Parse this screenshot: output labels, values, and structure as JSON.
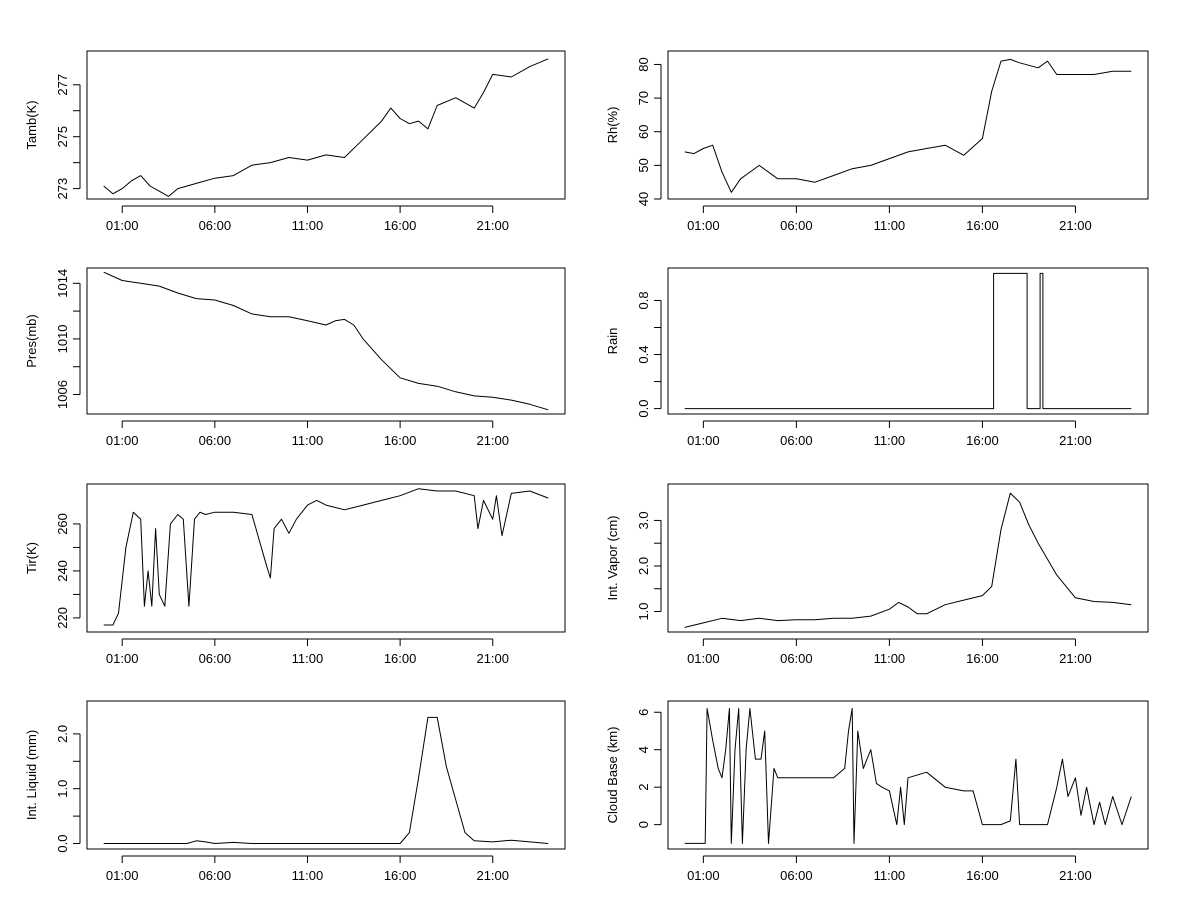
{
  "figure": {
    "title": ""
  },
  "chart_data": [
    {
      "type": "line",
      "ylabel": "Tamb(K)",
      "x_ticks": [
        "01:00",
        "06:00",
        "11:00",
        "16:00",
        "21:00"
      ],
      "x_tick_hours": [
        1,
        6,
        11,
        16,
        21
      ],
      "xlim": [
        -0.9,
        24.9
      ],
      "ylim": [
        272.6,
        278.3
      ],
      "y_ticks": [
        273,
        275,
        277
      ],
      "y_tick_labels": [
        "273",
        "275",
        "277"
      ],
      "y_minor_ticks": [
        274,
        276
      ],
      "series": [
        {
          "name": "Tamb(K)",
          "x": [
            0,
            0.5,
            1,
            1.5,
            2,
            2.5,
            3,
            3.5,
            4,
            5,
            6,
            7,
            8,
            9,
            10,
            11,
            12,
            13,
            14,
            15,
            15.5,
            16,
            16.5,
            17,
            17.5,
            18,
            19,
            20,
            20.5,
            21,
            22,
            23,
            24
          ],
          "y": [
            273.1,
            272.8,
            273.0,
            273.3,
            273.5,
            273.1,
            272.9,
            272.7,
            273.0,
            273.2,
            273.4,
            273.5,
            273.9,
            274.0,
            274.2,
            274.1,
            274.3,
            274.2,
            274.9,
            275.6,
            276.1,
            275.7,
            275.5,
            275.6,
            275.3,
            276.2,
            276.5,
            276.1,
            276.7,
            277.4,
            277.3,
            277.7,
            278.0
          ]
        }
      ]
    },
    {
      "type": "line",
      "ylabel": "Rh(%)",
      "x_ticks": [
        "01:00",
        "06:00",
        "11:00",
        "16:00",
        "21:00"
      ],
      "x_tick_hours": [
        1,
        6,
        11,
        16,
        21
      ],
      "xlim": [
        -0.9,
        24.9
      ],
      "ylim": [
        40,
        84
      ],
      "y_ticks": [
        40,
        50,
        60,
        70,
        80
      ],
      "y_tick_labels": [
        "40",
        "50",
        "60",
        "70",
        "80"
      ],
      "y_minor_ticks": [],
      "series": [
        {
          "name": "Rh(%)",
          "x": [
            0,
            0.5,
            1,
            1.5,
            2,
            2.5,
            3,
            3.5,
            4,
            5,
            6,
            7,
            8,
            9,
            10,
            11,
            12,
            13,
            14,
            15,
            16,
            16.5,
            17,
            17.5,
            18,
            19,
            19.5,
            20,
            21,
            22,
            23,
            24
          ],
          "y": [
            54,
            53.5,
            55,
            56,
            48,
            42,
            46,
            48,
            50,
            46,
            46,
            45,
            47,
            49,
            50,
            52,
            54,
            55,
            56,
            53,
            58,
            72,
            81,
            81.5,
            80.5,
            79,
            81,
            77,
            77,
            77,
            78,
            78
          ]
        }
      ]
    },
    {
      "type": "line",
      "ylabel": "Pres(mb)",
      "x_ticks": [
        "01:00",
        "06:00",
        "11:00",
        "16:00",
        "21:00"
      ],
      "x_tick_hours": [
        1,
        6,
        11,
        16,
        21
      ],
      "xlim": [
        -0.9,
        24.9
      ],
      "ylim": [
        1004.6,
        1015.1
      ],
      "y_ticks": [
        1006,
        1010,
        1014
      ],
      "y_tick_labels": [
        "1006",
        "1010",
        "1014"
      ],
      "y_minor_ticks": [
        1008,
        1012
      ],
      "series": [
        {
          "name": "Pres(mb)",
          "x": [
            0,
            1,
            2,
            3,
            4,
            5,
            6,
            7,
            8,
            9,
            10,
            11,
            12,
            12.5,
            13,
            13.5,
            14,
            15,
            16,
            17,
            18,
            19,
            20,
            21,
            22,
            23,
            24
          ],
          "y": [
            1014.8,
            1014.2,
            1014.0,
            1013.8,
            1013.3,
            1012.9,
            1012.8,
            1012.4,
            1011.8,
            1011.6,
            1011.6,
            1011.3,
            1011.0,
            1011.3,
            1011.4,
            1011.0,
            1010.0,
            1008.5,
            1007.2,
            1006.8,
            1006.6,
            1006.2,
            1005.9,
            1005.8,
            1005.6,
            1005.3,
            1004.9
          ]
        }
      ]
    },
    {
      "type": "line",
      "ylabel": "Rain",
      "x_ticks": [
        "01:00",
        "06:00",
        "11:00",
        "16:00",
        "21:00"
      ],
      "x_tick_hours": [
        1,
        6,
        11,
        16,
        21
      ],
      "xlim": [
        -0.9,
        24.9
      ],
      "ylim": [
        -0.04,
        1.04
      ],
      "y_ticks": [
        0,
        0.4,
        0.8
      ],
      "y_tick_labels": [
        "0.0",
        "0.4",
        "0.8"
      ],
      "y_minor_ticks": [
        0.2,
        0.6
      ],
      "series": [
        {
          "name": "Rain",
          "x": [
            0,
            16.6,
            16.6,
            18.4,
            18.4,
            19.1,
            19.1,
            19.25,
            19.25,
            24
          ],
          "y": [
            0,
            0,
            1,
            1,
            0,
            0,
            1,
            1,
            0,
            0
          ]
        }
      ]
    },
    {
      "type": "line",
      "ylabel": "Tir(K)",
      "x_ticks": [
        "01:00",
        "06:00",
        "11:00",
        "16:00",
        "21:00"
      ],
      "x_tick_hours": [
        1,
        6,
        11,
        16,
        21
      ],
      "xlim": [
        -0.9,
        24.9
      ],
      "ylim": [
        214,
        277
      ],
      "y_ticks": [
        220,
        240,
        260
      ],
      "y_tick_labels": [
        "220",
        "240",
        "260"
      ],
      "y_minor_ticks": [
        230,
        250
      ],
      "series": [
        {
          "name": "Tir(K)",
          "x": [
            0,
            0.5,
            0.8,
            1.2,
            1.6,
            2.0,
            2.2,
            2.4,
            2.6,
            2.8,
            3.0,
            3.3,
            3.6,
            4.0,
            4.3,
            4.6,
            4.9,
            5.2,
            5.5,
            6,
            7,
            8,
            8.8,
            9.0,
            9.2,
            9.6,
            10.0,
            10.4,
            11,
            11.5,
            12,
            13,
            14,
            15,
            16,
            17,
            18,
            19,
            20,
            20.2,
            20.5,
            21,
            21.2,
            21.5,
            22,
            23,
            24
          ],
          "y": [
            217,
            217,
            222,
            250,
            265,
            262,
            225,
            240,
            225,
            258,
            230,
            225,
            260,
            264,
            262,
            225,
            262,
            265,
            264,
            265,
            265,
            264,
            242,
            237,
            258,
            262,
            256,
            262,
            268,
            270,
            268,
            266,
            268,
            270,
            272,
            275,
            274,
            274,
            272,
            258,
            270,
            262,
            272,
            255,
            273,
            274,
            271
          ]
        }
      ]
    },
    {
      "type": "line",
      "ylabel": "Int. Vapor (cm)",
      "x_ticks": [
        "01:00",
        "06:00",
        "11:00",
        "16:00",
        "21:00"
      ],
      "x_tick_hours": [
        1,
        6,
        11,
        16,
        21
      ],
      "xlim": [
        -0.9,
        24.9
      ],
      "ylim": [
        0.55,
        3.8
      ],
      "y_ticks": [
        1,
        1.5,
        2,
        2.5,
        3
      ],
      "y_tick_labels": [
        "1.0",
        "",
        "2.0",
        "",
        "3.0"
      ],
      "y_minor_ticks": [],
      "series": [
        {
          "name": "Int. Vapor (cm)",
          "x": [
            0,
            1,
            2,
            3,
            4,
            5,
            6,
            7,
            8,
            9,
            10,
            11,
            11.5,
            12,
            12.5,
            13,
            14,
            15,
            16,
            16.5,
            17,
            17.5,
            18,
            18.5,
            19,
            20,
            21,
            22,
            23,
            24
          ],
          "y": [
            0.65,
            0.75,
            0.85,
            0.8,
            0.85,
            0.8,
            0.82,
            0.82,
            0.85,
            0.85,
            0.9,
            1.05,
            1.2,
            1.1,
            0.95,
            0.95,
            1.15,
            1.25,
            1.35,
            1.55,
            2.8,
            3.6,
            3.4,
            2.9,
            2.5,
            1.8,
            1.3,
            1.22,
            1.2,
            1.15
          ]
        }
      ]
    },
    {
      "type": "line",
      "ylabel": "Int. Liquid (mm)",
      "x_ticks": [
        "01:00",
        "06:00",
        "11:00",
        "16:00",
        "21:00"
      ],
      "x_tick_hours": [
        1,
        6,
        11,
        16,
        21
      ],
      "xlim": [
        -0.9,
        24.9
      ],
      "ylim": [
        -0.1,
        2.6
      ],
      "y_ticks": [
        0,
        0.5,
        1,
        1.5,
        2
      ],
      "y_tick_labels": [
        "0.0",
        "",
        "1.0",
        "",
        "2.0"
      ],
      "y_minor_ticks": [],
      "series": [
        {
          "name": "Int. Liquid (mm)",
          "x": [
            0,
            4.5,
            5,
            5.5,
            6,
            7,
            8,
            16,
            16.5,
            17,
            17.5,
            18,
            18.5,
            19,
            19.5,
            20,
            21,
            22,
            23,
            24
          ],
          "y": [
            0,
            0,
            0.05,
            0.03,
            0,
            0.02,
            0,
            0,
            0.2,
            1.2,
            2.3,
            2.3,
            1.4,
            0.8,
            0.2,
            0.05,
            0.03,
            0.06,
            0.03,
            0
          ]
        }
      ]
    },
    {
      "type": "line",
      "ylabel": "Cloud Base (km)",
      "x_ticks": [
        "01:00",
        "06:00",
        "11:00",
        "16:00",
        "21:00"
      ],
      "x_tick_hours": [
        1,
        6,
        11,
        16,
        21
      ],
      "xlim": [
        -0.9,
        24.9
      ],
      "ylim": [
        -1.3,
        6.6
      ],
      "y_ticks": [
        0,
        2,
        4,
        6
      ],
      "y_tick_labels": [
        "0",
        "2",
        "4",
        "6"
      ],
      "y_minor_ticks": [],
      "series": [
        {
          "name": "Cloud Base (km)",
          "x": [
            0,
            1.1,
            1.2,
            1.5,
            1.8,
            2.0,
            2.2,
            2.4,
            2.5,
            2.7,
            2.9,
            3.1,
            3.3,
            3.5,
            3.8,
            4.1,
            4.3,
            4.5,
            4.8,
            5.0,
            5.3,
            6,
            7,
            8,
            8.6,
            8.8,
            9.0,
            9.1,
            9.3,
            9.6,
            10,
            10.3,
            10.6,
            11,
            11.4,
            11.6,
            11.8,
            12,
            13,
            14,
            15,
            15.5,
            16,
            17,
            17.5,
            17.8,
            18,
            19,
            19.5,
            20,
            20.3,
            20.6,
            21,
            21.3,
            21.6,
            22,
            22.3,
            22.6,
            23,
            23.5,
            24
          ],
          "y": [
            -1,
            -1,
            6.2,
            4.5,
            3,
            2.5,
            4,
            6.2,
            -1,
            4,
            6.2,
            -1,
            4,
            6.2,
            3.5,
            3.5,
            5,
            -1,
            3,
            2.5,
            2.5,
            2.5,
            2.5,
            2.5,
            3,
            5,
            6.2,
            -1,
            5,
            3,
            4,
            2.2,
            2,
            1.8,
            0,
            2,
            0,
            2.5,
            2.8,
            2,
            1.8,
            1.8,
            0,
            0,
            0.2,
            3.5,
            0,
            0,
            0,
            2,
            3.5,
            1.5,
            2.5,
            0.5,
            2,
            0,
            1.2,
            0,
            1.5,
            0,
            1.5
          ]
        }
      ]
    }
  ]
}
